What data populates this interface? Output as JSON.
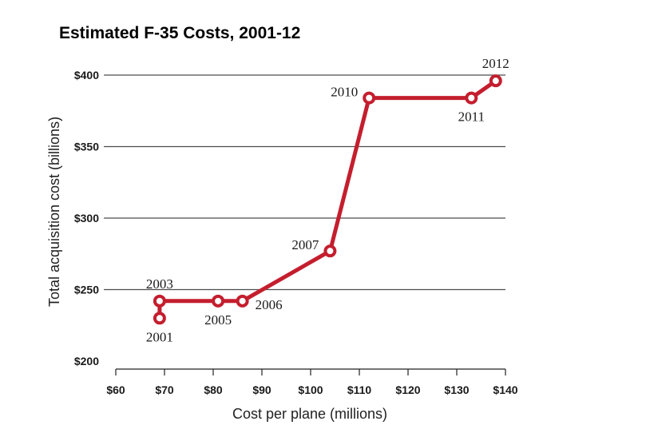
{
  "chart_data": {
    "type": "line",
    "title": "Estimated F-35 Costs, 2001-12",
    "xlabel": "Cost per plane (millions)",
    "ylabel": "Total acquisition cost (billions)",
    "xlim": [
      60,
      140
    ],
    "ylim": [
      200,
      400
    ],
    "x_ticks": [
      60,
      70,
      80,
      90,
      100,
      110,
      120,
      130,
      140
    ],
    "x_tick_labels": [
      "$60",
      "$70",
      "$80",
      "$90",
      "$100",
      "$110",
      "$120",
      "$130",
      "$140"
    ],
    "y_ticks": [
      200,
      250,
      300,
      350,
      400
    ],
    "y_tick_labels": [
      "$200",
      "$250",
      "$300",
      "$350",
      "$400"
    ],
    "grid": "horizontal",
    "line_color": "#c41e2e",
    "series": [
      {
        "points": [
          {
            "label": "2001",
            "x": 69,
            "y": 230,
            "label_pos": "below"
          },
          {
            "label": "2003",
            "x": 69,
            "y": 242,
            "label_pos": "above"
          },
          {
            "label": "2005",
            "x": 81,
            "y": 242,
            "label_pos": "below"
          },
          {
            "label": "2006",
            "x": 86,
            "y": 242,
            "label_pos": "right"
          },
          {
            "label": "2007",
            "x": 104,
            "y": 277,
            "label_pos": "left"
          },
          {
            "label": "2010",
            "x": 112,
            "y": 384,
            "label_pos": "left"
          },
          {
            "label": "2011",
            "x": 133,
            "y": 384,
            "label_pos": "below"
          },
          {
            "label": "2012",
            "x": 138,
            "y": 396,
            "label_pos": "above"
          }
        ]
      }
    ]
  }
}
